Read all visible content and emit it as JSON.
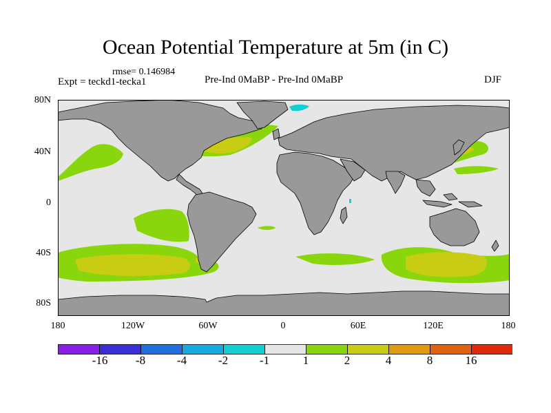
{
  "figure": {
    "title": "Ocean Potential Temperature at 5m (in C)",
    "rmse": "rmse= 0.146984",
    "experiment": "Expt = teckd1-tecka1",
    "comparison": "Pre-Ind 0MaBP - Pre-Ind 0MaBP",
    "season": "DJF"
  },
  "axes": {
    "lat_ticks": [
      "80N",
      "40N",
      "0",
      "40S",
      "80S"
    ],
    "lon_ticks": [
      "180",
      "120W",
      "60W",
      "0",
      "60E",
      "120E",
      "180"
    ]
  },
  "colorbar": {
    "colors": [
      "#8a1ee6",
      "#3a2fd6",
      "#1f6fe0",
      "#17a9e0",
      "#13cfd2",
      "#e6e6e6",
      "#8ad60c",
      "#c8cc12",
      "#e09a12",
      "#e0620c",
      "#e02a0a"
    ],
    "labels": [
      "-16",
      "-8",
      "-4",
      "-2",
      "-1",
      "1",
      "2",
      "4",
      "8",
      "16"
    ]
  },
  "map_colors": {
    "land": "#999999",
    "ocean": "#e6e6e6",
    "outline": "#000000"
  },
  "chart_data": {
    "type": "contour-map",
    "variable": "Ocean Potential Temperature at 5m",
    "units": "C",
    "projection": "cylindrical equidistant",
    "lon_range": [
      -180,
      180
    ],
    "lat_range": [
      -90,
      90
    ],
    "levels": [
      -16,
      -8,
      -4,
      -2,
      -1,
      1,
      2,
      4,
      8,
      16
    ],
    "anomaly_regions": [
      {
        "name": "North Pacific subtropical",
        "category": "1 to 2"
      },
      {
        "name": "Gulf Stream / North Atlantic",
        "category": "1 to 4"
      },
      {
        "name": "Kuroshio / NW Pacific",
        "category": "1 to 4"
      },
      {
        "name": "South Pacific midlatitude",
        "category": "1 to 2"
      },
      {
        "name": "Southern Ocean Pacific sector",
        "category": "1 to 4"
      },
      {
        "name": "South Atlantic",
        "category": "1 to 4"
      },
      {
        "name": "Southern Ocean Indian sector",
        "category": "1 to 4"
      },
      {
        "name": "Greenland Sea",
        "category": "-2 to -1"
      }
    ]
  }
}
